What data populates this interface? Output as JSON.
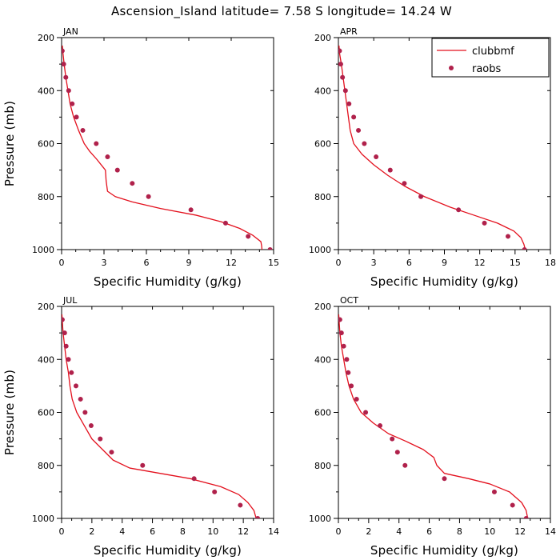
{
  "title": "Ascension_Island  latitude= 7.58 S longitude= 14.24 W",
  "colors": {
    "model": "#e3101d",
    "obs": "#b0214b",
    "axis": "#000000"
  },
  "legend": {
    "placement": "top-right of APR panel",
    "model_label": "clubbmf",
    "obs_label": "raobs"
  },
  "chart_data": [
    {
      "type": "line",
      "panel": "JAN",
      "xlabel": "Specific Humidity (g/kg)",
      "ylabel": "Pressure (mb)",
      "xlim": [
        0,
        15
      ],
      "xticks": [
        0,
        3,
        6,
        9,
        12,
        15
      ],
      "ylim": [
        200,
        1000
      ],
      "y_inverted": true,
      "yticks": [
        200,
        400,
        600,
        800,
        1000
      ],
      "series": [
        {
          "name": "clubbmf",
          "kind": "line",
          "points": [
            [
              0.05,
              230
            ],
            [
              0.1,
              260
            ],
            [
              0.18,
              300
            ],
            [
              0.3,
              350
            ],
            [
              0.45,
              400
            ],
            [
              0.6,
              450
            ],
            [
              0.85,
              500
            ],
            [
              1.2,
              550
            ],
            [
              1.6,
              600
            ],
            [
              2.0,
              630
            ],
            [
              2.5,
              660
            ],
            [
              2.95,
              690
            ],
            [
              3.1,
              700
            ],
            [
              3.15,
              740
            ],
            [
              3.25,
              780
            ],
            [
              3.8,
              800
            ],
            [
              5.0,
              820
            ],
            [
              7.0,
              845
            ],
            [
              9.5,
              870
            ],
            [
              11.3,
              895
            ],
            [
              12.6,
              920
            ],
            [
              13.5,
              945
            ],
            [
              14.1,
              970
            ],
            [
              14.15,
              985
            ],
            [
              14.2,
              1010
            ]
          ]
        },
        {
          "name": "raobs",
          "kind": "scatter",
          "points": [
            [
              0.05,
              250
            ],
            [
              0.15,
              300
            ],
            [
              0.3,
              350
            ],
            [
              0.5,
              400
            ],
            [
              0.75,
              450
            ],
            [
              1.05,
              500
            ],
            [
              1.5,
              550
            ],
            [
              2.45,
              600
            ],
            [
              3.25,
              650
            ],
            [
              3.95,
              700
            ],
            [
              5.0,
              750
            ],
            [
              6.15,
              800
            ],
            [
              9.15,
              850
            ],
            [
              11.6,
              900
            ],
            [
              13.2,
              950
            ],
            [
              14.75,
              1000
            ]
          ]
        }
      ]
    },
    {
      "type": "line",
      "panel": "APR",
      "xlabel": "Specific Humidity (g/kg)",
      "ylabel": "",
      "xlim": [
        0,
        18
      ],
      "xticks": [
        0,
        3,
        6,
        9,
        12,
        15,
        18
      ],
      "ylim": [
        200,
        1000
      ],
      "y_inverted": true,
      "yticks": [
        200,
        400,
        600,
        800,
        1000
      ],
      "series": [
        {
          "name": "clubbmf",
          "kind": "line",
          "points": [
            [
              0.05,
              230
            ],
            [
              0.1,
              260
            ],
            [
              0.25,
              300
            ],
            [
              0.4,
              350
            ],
            [
              0.55,
              400
            ],
            [
              0.7,
              450
            ],
            [
              0.85,
              500
            ],
            [
              1.0,
              550
            ],
            [
              1.3,
              600
            ],
            [
              2.0,
              640
            ],
            [
              3.0,
              680
            ],
            [
              4.2,
              720
            ],
            [
              5.6,
              760
            ],
            [
              7.3,
              800
            ],
            [
              9.5,
              840
            ],
            [
              11.5,
              870
            ],
            [
              13.5,
              900
            ],
            [
              14.9,
              930
            ],
            [
              15.5,
              955
            ],
            [
              15.75,
              980
            ],
            [
              15.9,
              1005
            ]
          ]
        },
        {
          "name": "raobs",
          "kind": "scatter",
          "points": [
            [
              0.1,
              250
            ],
            [
              0.2,
              300
            ],
            [
              0.35,
              350
            ],
            [
              0.6,
              400
            ],
            [
              0.9,
              450
            ],
            [
              1.3,
              500
            ],
            [
              1.7,
              550
            ],
            [
              2.2,
              600
            ],
            [
              3.2,
              650
            ],
            [
              4.4,
              700
            ],
            [
              5.6,
              750
            ],
            [
              7.0,
              800
            ],
            [
              10.2,
              850
            ],
            [
              12.4,
              900
            ],
            [
              14.4,
              950
            ],
            [
              15.8,
              1000
            ]
          ]
        }
      ]
    },
    {
      "type": "line",
      "panel": "JUL",
      "xlabel": "Specific Humidity (g/kg)",
      "ylabel": "Pressure (mb)",
      "xlim": [
        0,
        14
      ],
      "xticks": [
        0,
        2,
        4,
        6,
        8,
        10,
        12,
        14
      ],
      "ylim": [
        200,
        1000
      ],
      "y_inverted": true,
      "yticks": [
        200,
        400,
        600,
        800,
        1000
      ],
      "series": [
        {
          "name": "clubbmf",
          "kind": "line",
          "points": [
            [
              0.02,
              230
            ],
            [
              0.05,
              260
            ],
            [
              0.1,
              300
            ],
            [
              0.2,
              350
            ],
            [
              0.3,
              400
            ],
            [
              0.45,
              450
            ],
            [
              0.55,
              500
            ],
            [
              0.7,
              550
            ],
            [
              1.0,
              600
            ],
            [
              1.5,
              650
            ],
            [
              2.0,
              700
            ],
            [
              2.7,
              740
            ],
            [
              3.4,
              780
            ],
            [
              4.5,
              810
            ],
            [
              6.5,
              830
            ],
            [
              8.5,
              850
            ],
            [
              10.5,
              880
            ],
            [
              11.7,
              910
            ],
            [
              12.3,
              940
            ],
            [
              12.7,
              970
            ],
            [
              12.85,
              1000
            ],
            [
              12.9,
              1010
            ]
          ]
        },
        {
          "name": "raobs",
          "kind": "scatter",
          "points": [
            [
              0.05,
              250
            ],
            [
              0.2,
              300
            ],
            [
              0.3,
              350
            ],
            [
              0.45,
              400
            ],
            [
              0.65,
              450
            ],
            [
              0.95,
              500
            ],
            [
              1.25,
              550
            ],
            [
              1.55,
              600
            ],
            [
              1.95,
              650
            ],
            [
              2.55,
              700
            ],
            [
              3.3,
              750
            ],
            [
              5.35,
              800
            ],
            [
              8.75,
              850
            ],
            [
              10.1,
              900
            ],
            [
              11.8,
              950
            ],
            [
              12.95,
              1000
            ]
          ]
        }
      ]
    },
    {
      "type": "line",
      "panel": "OCT",
      "xlabel": "Specific Humidity (g/kg)",
      "ylabel": "",
      "xlim": [
        0,
        14
      ],
      "xticks": [
        0,
        2,
        4,
        6,
        8,
        10,
        12,
        14
      ],
      "ylim": [
        200,
        1000
      ],
      "y_inverted": true,
      "yticks": [
        200,
        400,
        600,
        800,
        1000
      ],
      "series": [
        {
          "name": "clubbmf",
          "kind": "line",
          "points": [
            [
              0.02,
              230
            ],
            [
              0.05,
              260
            ],
            [
              0.1,
              300
            ],
            [
              0.2,
              350
            ],
            [
              0.35,
              400
            ],
            [
              0.5,
              450
            ],
            [
              0.7,
              500
            ],
            [
              1.0,
              550
            ],
            [
              1.5,
              600
            ],
            [
              2.3,
              640
            ],
            [
              3.3,
              680
            ],
            [
              4.5,
              710
            ],
            [
              5.6,
              740
            ],
            [
              6.3,
              770
            ],
            [
              6.5,
              800
            ],
            [
              7.0,
              830
            ],
            [
              8.6,
              850
            ],
            [
              10.0,
              870
            ],
            [
              11.3,
              900
            ],
            [
              12.1,
              940
            ],
            [
              12.4,
              970
            ],
            [
              12.5,
              1000
            ],
            [
              12.55,
              1010
            ]
          ]
        },
        {
          "name": "raobs",
          "kind": "scatter",
          "points": [
            [
              0.1,
              250
            ],
            [
              0.2,
              300
            ],
            [
              0.35,
              350
            ],
            [
              0.55,
              400
            ],
            [
              0.65,
              450
            ],
            [
              0.85,
              500
            ],
            [
              1.2,
              550
            ],
            [
              1.8,
              600
            ],
            [
              2.75,
              650
            ],
            [
              3.55,
              700
            ],
            [
              3.9,
              750
            ],
            [
              4.4,
              800
            ],
            [
              7.0,
              850
            ],
            [
              10.3,
              900
            ],
            [
              11.5,
              950
            ],
            [
              12.4,
              1000
            ]
          ]
        }
      ]
    }
  ]
}
